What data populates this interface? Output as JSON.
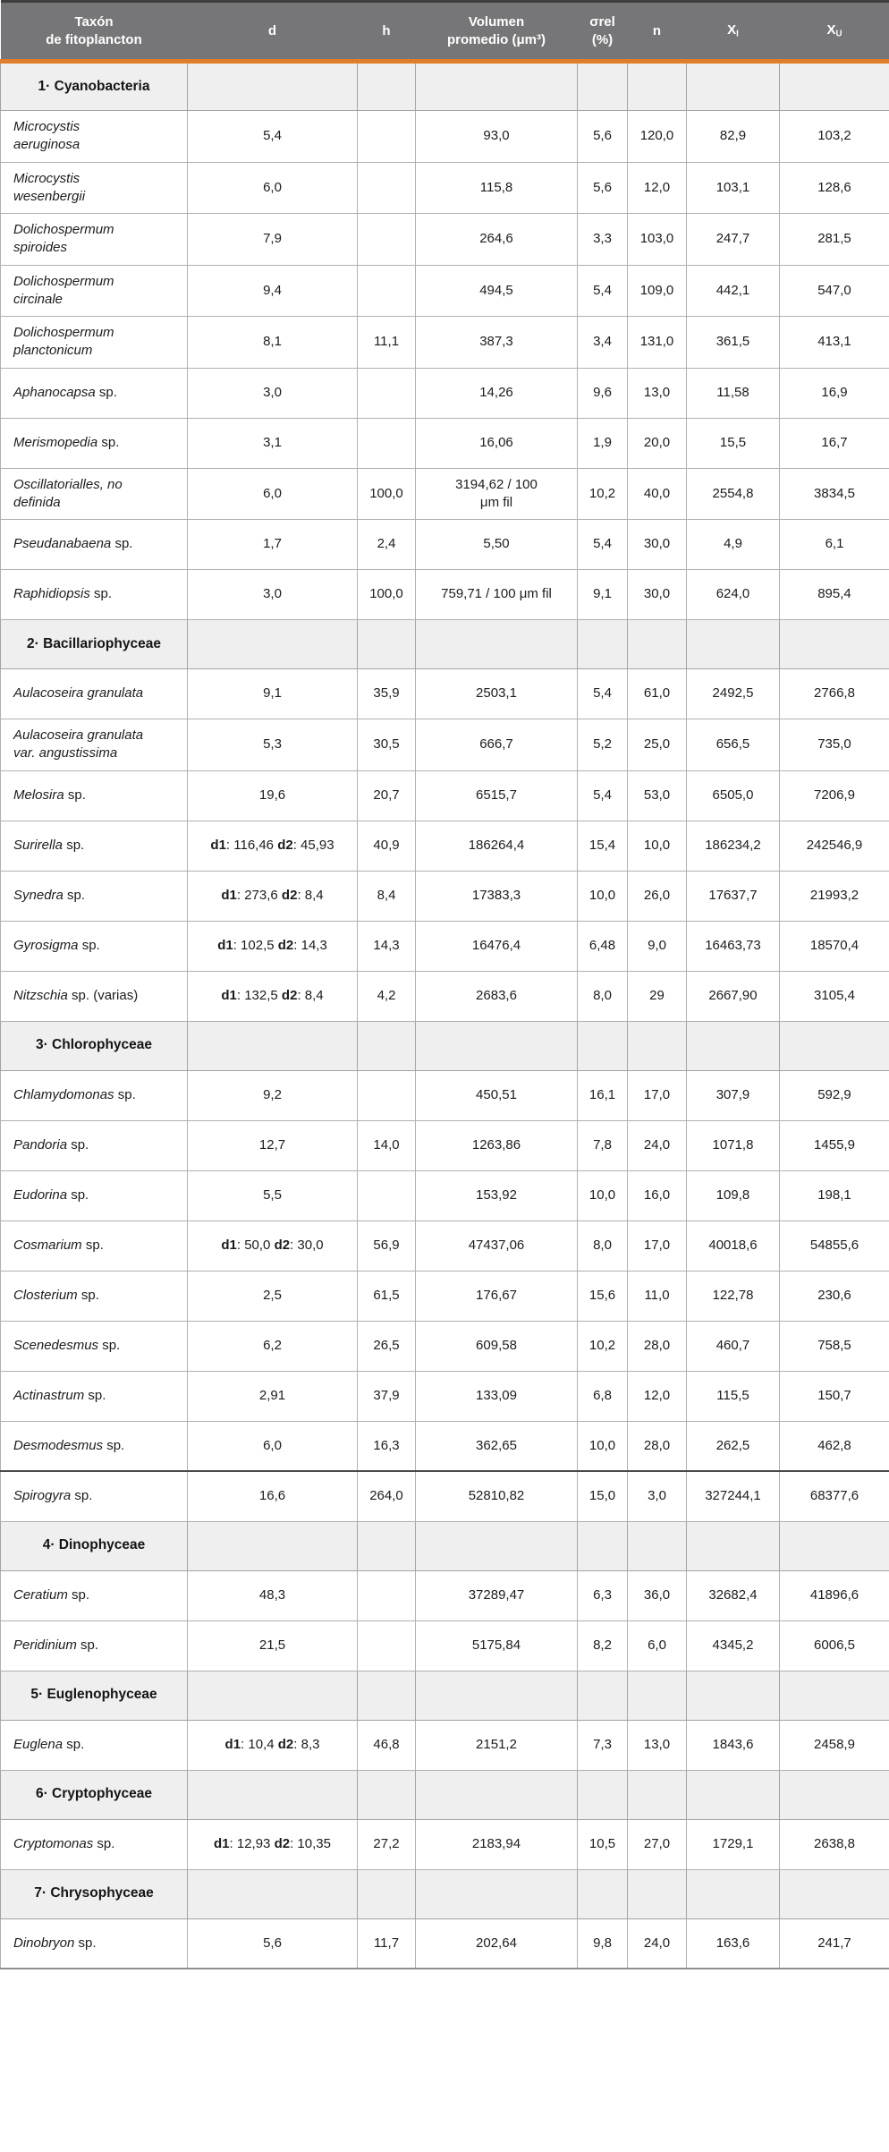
{
  "colors": {
    "header_bg": "#767678",
    "accent_orange": "#e27d2c",
    "section_bg": "#efefef",
    "border_gray": "#b0b0b0"
  },
  "table": {
    "columns": [
      {
        "key": "taxon",
        "label": "Taxón\nde fitoplancton"
      },
      {
        "key": "d",
        "label": "d"
      },
      {
        "key": "h",
        "label": "h"
      },
      {
        "key": "volumen",
        "label": "Volumen\npromedio (μm³)"
      },
      {
        "key": "sigma",
        "label": "σrel\n(%)"
      },
      {
        "key": "n",
        "label": "n"
      },
      {
        "key": "xi",
        "label": "X",
        "sub": "I"
      },
      {
        "key": "xu",
        "label": "X",
        "sub": "U"
      }
    ],
    "rows": [
      {
        "type": "section",
        "label": "1· Cyanobacteria"
      },
      {
        "type": "taxon",
        "italic": "Microcystis\naeruginosa",
        "rest": "",
        "d": "5,4",
        "h": "",
        "volumen": "93,0",
        "sigma": "5,6",
        "n": "120,0",
        "xi": "82,9",
        "xu": "103,2"
      },
      {
        "type": "taxon",
        "italic": "Microcystis\nwesenbergii",
        "rest": "",
        "d": "6,0",
        "h": "",
        "volumen": "115,8",
        "sigma": "5,6",
        "n": "12,0",
        "xi": "103,1",
        "xu": "128,6"
      },
      {
        "type": "taxon",
        "italic": "Dolichospermum\nspiroides",
        "rest": "",
        "d": "7,9",
        "h": "",
        "volumen": "264,6",
        "sigma": "3,3",
        "n": "103,0",
        "xi": "247,7",
        "xu": "281,5"
      },
      {
        "type": "taxon",
        "italic": "Dolichospermum\ncircinale",
        "rest": "",
        "d": "9,4",
        "h": "",
        "volumen": "494,5",
        "sigma": "5,4",
        "n": "109,0",
        "xi": "442,1",
        "xu": "547,0"
      },
      {
        "type": "taxon",
        "italic": "Dolichospermum\nplanctonicum",
        "rest": "",
        "d": "8,1",
        "h": "11,1",
        "volumen": "387,3",
        "sigma": "3,4",
        "n": "131,0",
        "xi": "361,5",
        "xu": "413,1"
      },
      {
        "type": "taxon",
        "italic": "Aphanocapsa",
        "rest": " sp.",
        "d": "3,0",
        "h": "",
        "volumen": "14,26",
        "sigma": "9,6",
        "n": "13,0",
        "xi": "11,58",
        "xu": "16,9"
      },
      {
        "type": "taxon",
        "italic": "Merismopedia",
        "rest": " sp.",
        "d": "3,1",
        "h": "",
        "volumen": "16,06",
        "sigma": "1,9",
        "n": "20,0",
        "xi": "15,5",
        "xu": "16,7"
      },
      {
        "type": "taxon",
        "italic": "Oscillatorialles, no\ndefinida",
        "rest": "",
        "d": "6,0",
        "h": "100,0",
        "volumen": "3194,62 / 100\nμm fil",
        "sigma": "10,2",
        "n": "40,0",
        "xi": "2554,8",
        "xu": "3834,5"
      },
      {
        "type": "taxon",
        "italic": "Pseudanabaena",
        "rest": " sp.",
        "d": "1,7",
        "h": "2,4",
        "volumen": "5,50",
        "sigma": "5,4",
        "n": "30,0",
        "xi": "4,9",
        "xu": "6,1"
      },
      {
        "type": "taxon",
        "italic": "Raphidiopsis",
        "rest": " sp.",
        "d": "3,0",
        "h": "100,0",
        "volumen": "759,71 / 100 μm fil",
        "sigma": "9,1",
        "n": "30,0",
        "xi": "624,0",
        "xu": "895,4"
      },
      {
        "type": "section",
        "label": "2· Bacillariophyceae"
      },
      {
        "type": "taxon",
        "italic": "Aulacoseira granulata",
        "rest": "",
        "d": "9,1",
        "h": "35,9",
        "volumen": "2503,1",
        "sigma": "5,4",
        "n": "61,0",
        "xi": "2492,5",
        "xu": "2766,8"
      },
      {
        "type": "taxon",
        "italic": "Aulacoseira granulata\nvar. angustissima",
        "rest": "",
        "d": "5,3",
        "h": "30,5",
        "volumen": "666,7",
        "sigma": "5,2",
        "n": "25,0",
        "xi": "656,5",
        "xu": "735,0"
      },
      {
        "type": "taxon",
        "italic": "Melosira",
        "rest": " sp.",
        "d": "19,6",
        "h": "20,7",
        "volumen": "6515,7",
        "sigma": "5,4",
        "n": "53,0",
        "xi": "6505,0",
        "xu": "7206,9"
      },
      {
        "type": "taxon",
        "italic": "Surirella",
        "rest": " sp.",
        "d": "d1: 116,46 d2: 45,93",
        "h": "40,9",
        "volumen": "186264,4",
        "sigma": "15,4",
        "n": "10,0",
        "xi": "186234,2",
        "xu": "242546,9"
      },
      {
        "type": "taxon",
        "italic": "Synedra",
        "rest": " sp.",
        "d": "d1: 273,6 d2: 8,4",
        "h": "8,4",
        "volumen": "17383,3",
        "sigma": "10,0",
        "n": "26,0",
        "xi": "17637,7",
        "xu": "21993,2"
      },
      {
        "type": "taxon",
        "italic": "Gyrosigma",
        "rest": " sp.",
        "d": "d1: 102,5 d2: 14,3",
        "h": "14,3",
        "volumen": "16476,4",
        "sigma": "6,48",
        "n": "9,0",
        "xi": "16463,73",
        "xu": "18570,4"
      },
      {
        "type": "taxon",
        "italic": "Nitzschia",
        "rest": " sp. (varias)",
        "d": "d1: 132,5 d2: 8,4",
        "h": "4,2",
        "volumen": "2683,6",
        "sigma": "8,0",
        "n": "29",
        "xi": "2667,90",
        "xu": "3105,4"
      },
      {
        "type": "section",
        "label": "3· Chlorophyceae"
      },
      {
        "type": "taxon",
        "italic": "Chlamydomonas",
        "rest": " sp.",
        "d": "9,2",
        "h": "",
        "volumen": "450,51",
        "sigma": "16,1",
        "n": "17,0",
        "xi": "307,9",
        "xu": "592,9"
      },
      {
        "type": "taxon",
        "italic": "Pandoria",
        "rest": " sp.",
        "d": "12,7",
        "h": "14,0",
        "volumen": "1263,86",
        "sigma": "7,8",
        "n": "24,0",
        "xi": "1071,8",
        "xu": "1455,9"
      },
      {
        "type": "taxon",
        "italic": "Eudorina",
        "rest": " sp.",
        "d": "5,5",
        "h": "",
        "volumen": "153,92",
        "sigma": "10,0",
        "n": "16,0",
        "xi": "109,8",
        "xu": "198,1"
      },
      {
        "type": "taxon",
        "italic": "Cosmarium",
        "rest": " sp.",
        "d": "d1: 50,0 d2: 30,0",
        "h": "56,9",
        "volumen": "47437,06",
        "sigma": "8,0",
        "n": "17,0",
        "xi": "40018,6",
        "xu": "54855,6"
      },
      {
        "type": "taxon",
        "italic": "Closterium",
        "rest": " sp.",
        "d": "2,5",
        "h": "61,5",
        "volumen": "176,67",
        "sigma": "15,6",
        "n": "11,0",
        "xi": "122,78",
        "xu": "230,6"
      },
      {
        "type": "taxon",
        "italic": "Scenedesmus",
        "rest": " sp.",
        "d": "6,2",
        "h": "26,5",
        "volumen": "609,58",
        "sigma": "10,2",
        "n": "28,0",
        "xi": "460,7",
        "xu": "758,5"
      },
      {
        "type": "taxon",
        "italic": "Actinastrum",
        "rest": " sp.",
        "d": "2,91",
        "h": "37,9",
        "volumen": "133,09",
        "sigma": "6,8",
        "n": "12,0",
        "xi": "115,5",
        "xu": "150,7"
      },
      {
        "type": "taxon",
        "italic": "Desmodesmus",
        "rest": " sp.",
        "d": "6,0",
        "h": "16,3",
        "volumen": "362,65",
        "sigma": "10,0",
        "n": "28,0",
        "xi": "262,5",
        "xu": "462,8"
      },
      {
        "type": "taxon",
        "italic": "Spirogyra",
        "rest": " sp.",
        "d": "16,6",
        "h": "264,0",
        "volumen": "52810,82",
        "sigma": "15,0",
        "n": "3,0",
        "xi": "327244,1",
        "xu": "68377,6",
        "dark_top": true
      },
      {
        "type": "section",
        "label": "4· Dinophyceae"
      },
      {
        "type": "taxon",
        "italic": "Ceratium",
        "rest": " sp.",
        "d": "48,3",
        "h": "",
        "volumen": "37289,47",
        "sigma": "6,3",
        "n": "36,0",
        "xi": "32682,4",
        "xu": "41896,6"
      },
      {
        "type": "taxon",
        "italic": "Peridinium",
        "rest": " sp.",
        "d": "21,5",
        "h": "",
        "volumen": "5175,84",
        "sigma": "8,2",
        "n": "6,0",
        "xi": "4345,2",
        "xu": "6006,5"
      },
      {
        "type": "section",
        "label": "5· Euglenophyceae"
      },
      {
        "type": "taxon",
        "italic": "Euglena",
        "rest": " sp.",
        "d": "d1: 10,4 d2: 8,3",
        "h": "46,8",
        "volumen": "2151,2",
        "sigma": "7,3",
        "n": "13,0",
        "xi": "1843,6",
        "xu": "2458,9"
      },
      {
        "type": "section",
        "label": "6· Cryptophyceae"
      },
      {
        "type": "taxon",
        "italic": "Cryptomonas",
        "rest": " sp.",
        "d": "d1: 12,93 d2: 10,35",
        "h": "27,2",
        "volumen": "2183,94",
        "sigma": "10,5",
        "n": "27,0",
        "xi": "1729,1",
        "xu": "2638,8"
      },
      {
        "type": "section",
        "label": "7· Chrysophyceae"
      },
      {
        "type": "taxon",
        "italic": "Dinobryon",
        "rest": " sp.",
        "d": "5,6",
        "h": "11,7",
        "volumen": "202,64",
        "sigma": "9,8",
        "n": "24,0",
        "xi": "163,6",
        "xu": "241,7"
      }
    ]
  }
}
